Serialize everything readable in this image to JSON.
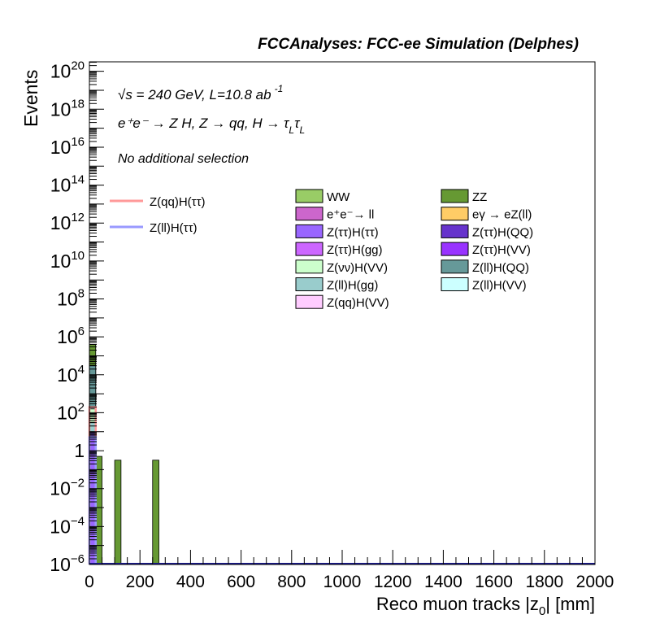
{
  "chart_data": {
    "type": "bar",
    "title": "FCCAnalyses: FCC-ee Simulation (Delphes)",
    "xlabel": "Reco muon tracks |z",
    "xlabel_sub": "0",
    "xlabel_end": "| [mm]",
    "ylabel": "Events",
    "xlim": [
      0,
      2000
    ],
    "ylim_log10": [
      -6,
      20.5
    ],
    "yscale": "log",
    "grid": false,
    "x_ticks": [
      "0",
      "200",
      "400",
      "600",
      "800",
      "1000",
      "1200",
      "1400",
      "1600",
      "1800",
      "2000"
    ],
    "y_ticks": [
      {
        "base": "10",
        "exp": "−6",
        "v": -6
      },
      {
        "base": "10",
        "exp": "−4",
        "v": -4
      },
      {
        "base": "10",
        "exp": "−2",
        "v": -2
      },
      {
        "base": "1",
        "exp": "",
        "v": 0
      },
      {
        "base": "10",
        "exp": "2",
        "v": 2
      },
      {
        "base": "10",
        "exp": "4",
        "v": 4
      },
      {
        "base": "10",
        "exp": "6",
        "v": 6
      },
      {
        "base": "10",
        "exp": "8",
        "v": 8
      },
      {
        "base": "10",
        "exp": "10",
        "v": 10
      },
      {
        "base": "10",
        "exp": "12",
        "v": 12
      },
      {
        "base": "10",
        "exp": "14",
        "v": 14
      },
      {
        "base": "10",
        "exp": "16",
        "v": 16
      },
      {
        "base": "10",
        "exp": "18",
        "v": 18
      },
      {
        "base": "10",
        "exp": "20",
        "v": 20
      }
    ],
    "annotations": {
      "energy": "√s = 240 GeV, L=10.8 ab",
      "energy_sup": "-1",
      "process": "e⁺e⁻ → Z H, Z → qq, H → τ",
      "process_sub1": "L",
      "process_mid": "τ",
      "process_sub2": "L",
      "selection": "No additional selection"
    },
    "signal_legend": [
      {
        "name": "Z(qq)H(ττ)",
        "color": "#ff9999"
      },
      {
        "name": "Z(ll)H(ττ)",
        "color": "#9999ff"
      }
    ],
    "background_legend": [
      {
        "name": "WW",
        "color": "#99cc66"
      },
      {
        "name": "ZZ",
        "color": "#669933"
      },
      {
        "name": "e⁺e⁻→ ll",
        "color": "#cc66cc"
      },
      {
        "name": "eγ → eZ(ll)",
        "color": "#ffcc66"
      },
      {
        "name": "Z(ττ)H(ττ)",
        "color": "#9966ff"
      },
      {
        "name": "Z(ττ)H(QQ)",
        "color": "#6633cc"
      },
      {
        "name": "Z(ττ)H(gg)",
        "color": "#cc66ff"
      },
      {
        "name": "Z(ττ)H(VV)",
        "color": "#9933ff"
      },
      {
        "name": "Z(νν)H(VV)",
        "color": "#ccffcc"
      },
      {
        "name": "Z(ll)H(QQ)",
        "color": "#669999"
      },
      {
        "name": "Z(ll)H(gg)",
        "color": "#99cccc"
      },
      {
        "name": "Z(ll)H(VV)",
        "color": "#ccffff"
      },
      {
        "name": "Z(qq)H(VV)",
        "color": "#ffccff"
      }
    ],
    "bin_width": 25,
    "stacked_bins": [
      {
        "x": 0,
        "layers": [
          {
            "name": "Z(ττ)H(ττ)",
            "color": "#9966ff",
            "top": 1.0
          },
          {
            "name": "Z(ll)H(gg)",
            "color": "#99cccc",
            "top": 1.5
          },
          {
            "name": "Z(νν)H(VV)",
            "color": "#ccffcc",
            "top": 2.2
          },
          {
            "name": "Z(ll)H(QQ)",
            "color": "#669999",
            "top": 4.5
          },
          {
            "name": "ZZ",
            "color": "#669933",
            "top": 5.6
          }
        ]
      },
      {
        "x": 25,
        "layers": [
          {
            "name": "ZZ",
            "color": "#669933",
            "top": -0.3
          }
        ]
      },
      {
        "x": 100,
        "layers": [
          {
            "name": "ZZ",
            "color": "#669933",
            "top": -0.5
          }
        ]
      },
      {
        "x": 250,
        "layers": [
          {
            "name": "ZZ",
            "color": "#669933",
            "top": -0.5
          }
        ]
      }
    ],
    "signal_curves": [
      {
        "name": "Z(qq)H(ττ)",
        "color": "#ff9999",
        "bins": [
          {
            "x": 0,
            "log10": 2.3
          }
        ]
      },
      {
        "name": "Z(ll)H(ττ)",
        "color": "#9999ff",
        "bins": [
          {
            "x": 0,
            "log10": 0.7
          }
        ]
      }
    ]
  }
}
